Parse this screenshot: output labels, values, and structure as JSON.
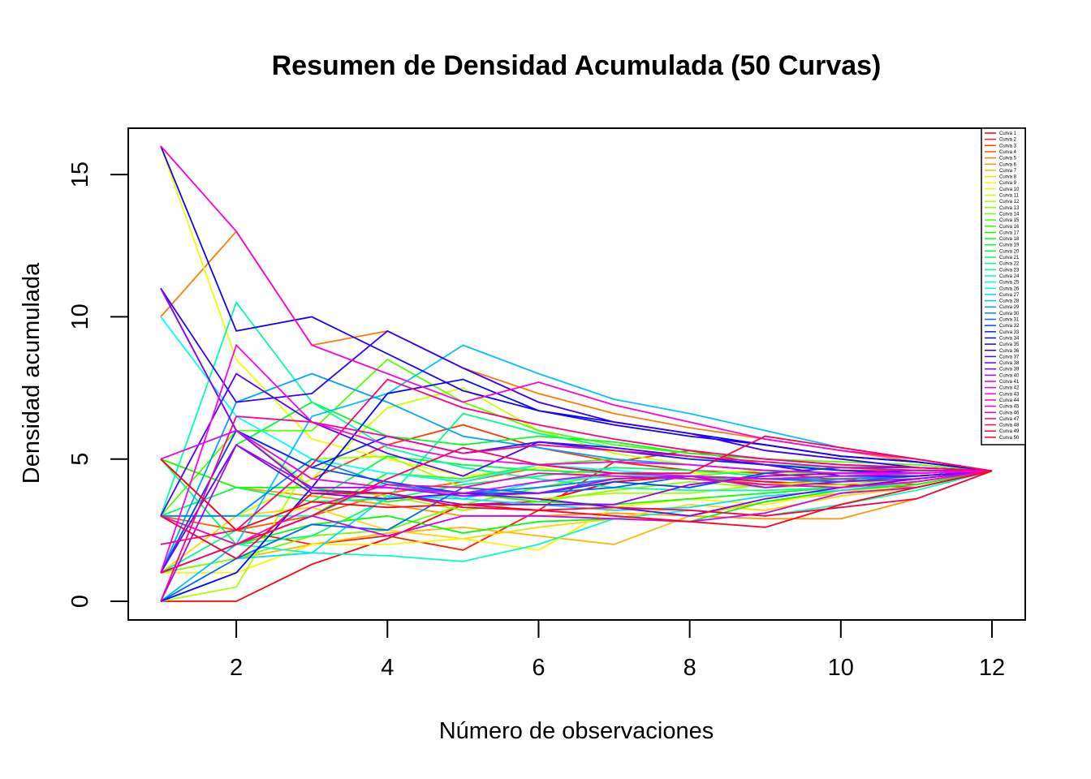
{
  "chart_data": {
    "type": "line",
    "title": "Resumen de Densidad Acumulada (50 Curvas)",
    "xlabel": "Número de observaciones",
    "ylabel": "Densidad acumulada",
    "xlim": [
      1,
      12
    ],
    "ylim": [
      0,
      16
    ],
    "x_ticks": [
      2,
      4,
      6,
      8,
      10,
      12
    ],
    "y_ticks": [
      0,
      5,
      10,
      15
    ],
    "legend_position": "top-right",
    "x": [
      1,
      2,
      3,
      4,
      5,
      6,
      7,
      8,
      9,
      10,
      11,
      12
    ],
    "series": [
      {
        "name": "Curva 1",
        "color": "#FF0000",
        "values": [
          0,
          0,
          1.3,
          2.2,
          3.4,
          3.5,
          4.2,
          4.4,
          4.2,
          4.1,
          4.0,
          4.58
        ]
      },
      {
        "name": "Curva 2",
        "color": "#FF1E00",
        "values": [
          5,
          2.5,
          2.0,
          2.3,
          1.8,
          3.2,
          4.9,
          4.6,
          4.5,
          4.3,
          4.1,
          4.58
        ]
      },
      {
        "name": "Curva 3",
        "color": "#FF3D00",
        "values": [
          1,
          6.0,
          4.3,
          5.5,
          6.2,
          5.4,
          4.9,
          5.3,
          4.8,
          4.6,
          4.6,
          4.58
        ]
      },
      {
        "name": "Curva 4",
        "color": "#FF5B00",
        "values": [
          3,
          2.5,
          3.0,
          3.8,
          4.2,
          4.7,
          4.3,
          4.4,
          4.1,
          4.3,
          4.4,
          4.58
        ]
      },
      {
        "name": "Curva 5",
        "color": "#FF7A00",
        "values": [
          10,
          13.0,
          9.0,
          9.5,
          8.2,
          7.3,
          6.6,
          6.1,
          5.7,
          5.3,
          4.9,
          4.58
        ]
      },
      {
        "name": "Curva 6",
        "color": "#FF9900",
        "values": [
          5,
          4.0,
          3.7,
          3.4,
          3.0,
          3.0,
          3.1,
          3.0,
          2.9,
          2.9,
          3.6,
          4.58
        ]
      },
      {
        "name": "Curva 7",
        "color": "#FFB800",
        "values": [
          3,
          1.5,
          2.0,
          2.4,
          2.6,
          2.3,
          2.0,
          3.0,
          3.5,
          3.8,
          4.2,
          4.58
        ]
      },
      {
        "name": "Curva 8",
        "color": "#FFD600",
        "values": [
          1,
          3.0,
          3.3,
          2.5,
          2.2,
          2.6,
          2.9,
          3.4,
          3.2,
          3.7,
          4.0,
          4.58
        ]
      },
      {
        "name": "Curva 9",
        "color": "#FFF500",
        "values": [
          1,
          1.0,
          2.0,
          2.0,
          2.2,
          1.8,
          3.3,
          3.6,
          3.4,
          3.9,
          4.0,
          4.58
        ]
      },
      {
        "name": "Curva 10",
        "color": "#EBFF00",
        "values": [
          16,
          8.5,
          5.7,
          5.0,
          4.4,
          4.7,
          4.3,
          4.5,
          4.6,
          4.3,
          4.4,
          4.58
        ]
      },
      {
        "name": "Curva 11",
        "color": "#CCFF00",
        "values": [
          3,
          3.0,
          4.3,
          6.8,
          7.5,
          6.0,
          5.2,
          4.8,
          4.6,
          4.4,
          4.3,
          4.58
        ]
      },
      {
        "name": "Curva 12",
        "color": "#ADFF00",
        "values": [
          0,
          0.5,
          5.0,
          5.1,
          4.0,
          3.6,
          3.8,
          3.8,
          4.1,
          4.2,
          4.4,
          4.58
        ]
      },
      {
        "name": "Curva 13",
        "color": "#8FFF00",
        "values": [
          5,
          6.0,
          4.0,
          3.7,
          3.2,
          3.5,
          3.9,
          4.2,
          4.0,
          4.1,
          4.3,
          4.58
        ]
      },
      {
        "name": "Curva 14",
        "color": "#70FF00",
        "values": [
          1,
          1.5,
          2.3,
          2.5,
          3.4,
          4.0,
          4.5,
          4.4,
          4.6,
          4.4,
          4.4,
          4.58
        ]
      },
      {
        "name": "Curva 15",
        "color": "#52FF00",
        "values": [
          3,
          6.0,
          6.0,
          8.5,
          7.0,
          6.0,
          5.5,
          5.2,
          5.0,
          4.9,
          4.8,
          4.58
        ]
      },
      {
        "name": "Curva 16",
        "color": "#33FF00",
        "values": [
          1,
          2.0,
          3.0,
          4.5,
          4.3,
          4.8,
          5.0,
          4.8,
          4.6,
          4.5,
          4.4,
          4.58
        ]
      },
      {
        "name": "Curva 17",
        "color": "#14FF00",
        "values": [
          5,
          4.0,
          4.0,
          3.5,
          3.8,
          3.5,
          3.4,
          3.6,
          3.8,
          4.0,
          4.2,
          4.58
        ]
      },
      {
        "name": "Curva 18",
        "color": "#00FF0A",
        "values": [
          3,
          2.0,
          2.7,
          3.0,
          2.4,
          2.8,
          2.9,
          2.8,
          3.5,
          3.9,
          4.1,
          4.58
        ]
      },
      {
        "name": "Curva 19",
        "color": "#00FF29",
        "values": [
          1,
          5.5,
          7.0,
          5.8,
          5.5,
          5.8,
          5.6,
          5.2,
          5.0,
          4.8,
          4.7,
          4.58
        ]
      },
      {
        "name": "Curva 20",
        "color": "#00FF47",
        "values": [
          3,
          4.0,
          3.5,
          5.1,
          4.8,
          4.6,
          4.5,
          4.3,
          4.3,
          4.4,
          4.5,
          4.58
        ]
      },
      {
        "name": "Curva 21",
        "color": "#00FF66",
        "values": [
          5,
          2.0,
          2.3,
          3.6,
          4.1,
          4.4,
          4.7,
          4.6,
          4.4,
          4.5,
          4.5,
          4.58
        ]
      },
      {
        "name": "Curva 22",
        "color": "#00FF85",
        "values": [
          1,
          2.5,
          3.5,
          3.6,
          6.6,
          5.9,
          5.4,
          5.1,
          4.8,
          4.7,
          4.6,
          4.58
        ]
      },
      {
        "name": "Curva 23",
        "color": "#00FFA3",
        "values": [
          3,
          10.5,
          7.0,
          5.4,
          4.7,
          4.3,
          4.0,
          3.9,
          3.9,
          4.0,
          4.2,
          4.58
        ]
      },
      {
        "name": "Curva 24",
        "color": "#00FFC2",
        "values": [
          1,
          2.0,
          1.7,
          1.6,
          1.4,
          2.0,
          2.9,
          3.2,
          3.0,
          3.4,
          3.9,
          4.58
        ]
      },
      {
        "name": "Curva 25",
        "color": "#00FFE0",
        "values": [
          3,
          3.0,
          3.0,
          4.2,
          3.6,
          4.2,
          4.4,
          4.4,
          4.3,
          4.4,
          4.5,
          4.58
        ]
      },
      {
        "name": "Curva 26",
        "color": "#00FFFF",
        "values": [
          10,
          6.5,
          5.0,
          4.5,
          4.2,
          4.8,
          4.6,
          4.4,
          4.3,
          4.4,
          4.5,
          4.58
        ]
      },
      {
        "name": "Curva 27",
        "color": "#00E0FF",
        "values": [
          3,
          1.5,
          1.7,
          3.7,
          3.6,
          3.4,
          3.2,
          3.3,
          3.7,
          3.9,
          4.2,
          4.58
        ]
      },
      {
        "name": "Curva 28",
        "color": "#00C2FF",
        "values": [
          0,
          2.0,
          6.5,
          7.3,
          9.0,
          8.0,
          7.1,
          6.6,
          6.0,
          5.4,
          5.0,
          4.58
        ]
      },
      {
        "name": "Curva 29",
        "color": "#00A3FF",
        "values": [
          1,
          7.0,
          8.0,
          7.0,
          5.8,
          5.4,
          5.0,
          4.8,
          4.6,
          4.5,
          4.5,
          4.58
        ]
      },
      {
        "name": "Curva 30",
        "color": "#0085FF",
        "values": [
          3,
          3.0,
          5.0,
          4.1,
          3.8,
          4.0,
          4.3,
          4.4,
          4.3,
          4.3,
          4.4,
          4.58
        ]
      },
      {
        "name": "Curva 31",
        "color": "#0066FF",
        "values": [
          0,
          1.5,
          2.7,
          2.5,
          4.0,
          3.8,
          4.0,
          4.4,
          4.3,
          4.2,
          4.4,
          4.58
        ]
      },
      {
        "name": "Curva 32",
        "color": "#0047FF",
        "values": [
          1,
          6.0,
          4.7,
          4.2,
          3.8,
          3.8,
          4.2,
          4.0,
          4.5,
          4.7,
          4.7,
          4.58
        ]
      },
      {
        "name": "Curva 33",
        "color": "#0029FF",
        "values": [
          11,
          6.0,
          4.7,
          5.8,
          5.2,
          5.6,
          5.3,
          5.0,
          4.8,
          4.6,
          4.5,
          4.58
        ]
      },
      {
        "name": "Curva 34",
        "color": "#000AFF",
        "values": [
          0,
          1.0,
          4.0,
          7.3,
          7.8,
          6.7,
          6.3,
          5.9,
          5.5,
          5.1,
          4.9,
          4.58
        ]
      },
      {
        "name": "Curva 35",
        "color": "#1400FF",
        "values": [
          16,
          9.5,
          10.0,
          8.7,
          7.4,
          6.7,
          6.2,
          5.8,
          5.5,
          5.1,
          4.9,
          4.58
        ]
      },
      {
        "name": "Curva 36",
        "color": "#3300FF",
        "values": [
          11,
          7.0,
          7.3,
          9.5,
          8.2,
          7.0,
          6.3,
          5.9,
          5.3,
          5.0,
          4.7,
          4.58
        ]
      },
      {
        "name": "Curva 37",
        "color": "#5200FF",
        "values": [
          3,
          8.0,
          6.3,
          5.2,
          4.4,
          5.6,
          5.4,
          5.1,
          4.8,
          4.4,
          4.4,
          4.58
        ]
      },
      {
        "name": "Curva 38",
        "color": "#7000FF",
        "values": [
          1,
          5.5,
          3.8,
          3.6,
          3.8,
          3.6,
          3.3,
          3.0,
          3.6,
          4.0,
          4.3,
          4.58
        ]
      },
      {
        "name": "Curva 39",
        "color": "#8F00FF",
        "values": [
          11,
          6.0,
          3.9,
          3.8,
          3.4,
          3.4,
          3.4,
          4.1,
          4.4,
          4.5,
          4.6,
          4.58
        ]
      },
      {
        "name": "Curva 40",
        "color": "#AD00FF",
        "values": [
          0,
          5.5,
          4.0,
          4.0,
          3.7,
          3.8,
          4.3,
          4.4,
          4.0,
          4.2,
          4.3,
          4.58
        ]
      },
      {
        "name": "Curva 41",
        "color": "#CC00FF",
        "values": [
          1,
          2.0,
          3.0,
          2.3,
          3.0,
          3.0,
          2.9,
          2.8,
          3.1,
          3.8,
          4.0,
          4.58
        ]
      },
      {
        "name": "Curva 42",
        "color": "#EB00FF",
        "values": [
          5,
          6.0,
          4.3,
          4.0,
          3.8,
          4.2,
          4.5,
          4.4,
          4.3,
          4.4,
          4.5,
          4.58
        ]
      },
      {
        "name": "Curva 43",
        "color": "#FF00F5",
        "values": [
          1,
          9.0,
          6.3,
          5.5,
          5.0,
          4.8,
          4.9,
          4.8,
          4.6,
          4.5,
          4.5,
          4.58
        ]
      },
      {
        "name": "Curva 44",
        "color": "#FF00D6",
        "values": [
          16,
          13.0,
          9.0,
          8.0,
          7.0,
          7.7,
          6.9,
          6.3,
          5.7,
          5.3,
          5.0,
          4.58
        ]
      },
      {
        "name": "Curva 45",
        "color": "#FF00B8",
        "values": [
          3,
          2.0,
          3.3,
          4.1,
          4.0,
          4.5,
          4.4,
          4.3,
          4.1,
          4.0,
          4.2,
          4.58
        ]
      },
      {
        "name": "Curva 46",
        "color": "#FF0099",
        "values": [
          0,
          6.5,
          6.3,
          5.8,
          5.2,
          5.5,
          5.3,
          5.1,
          4.9,
          4.7,
          4.6,
          4.58
        ]
      },
      {
        "name": "Curva 47",
        "color": "#FF007A",
        "values": [
          2,
          2.5,
          4.8,
          7.8,
          6.8,
          6.2,
          5.7,
          5.3,
          5.0,
          4.8,
          4.7,
          4.58
        ]
      },
      {
        "name": "Curva 48",
        "color": "#FF005C",
        "values": [
          1,
          2.0,
          3.0,
          4.3,
          5.4,
          4.8,
          4.5,
          4.5,
          5.8,
          5.4,
          5.0,
          4.58
        ]
      },
      {
        "name": "Curva 49",
        "color": "#FF003D",
        "values": [
          3,
          1.5,
          3.8,
          3.8,
          3.3,
          3.2,
          3.3,
          3.2,
          3.0,
          3.3,
          3.6,
          4.58
        ]
      },
      {
        "name": "Curva 50",
        "color": "#FF001F",
        "values": [
          5,
          2.5,
          3.5,
          3.3,
          3.4,
          3.2,
          3.0,
          2.8,
          2.6,
          3.4,
          4.0,
          4.58
        ]
      }
    ]
  }
}
